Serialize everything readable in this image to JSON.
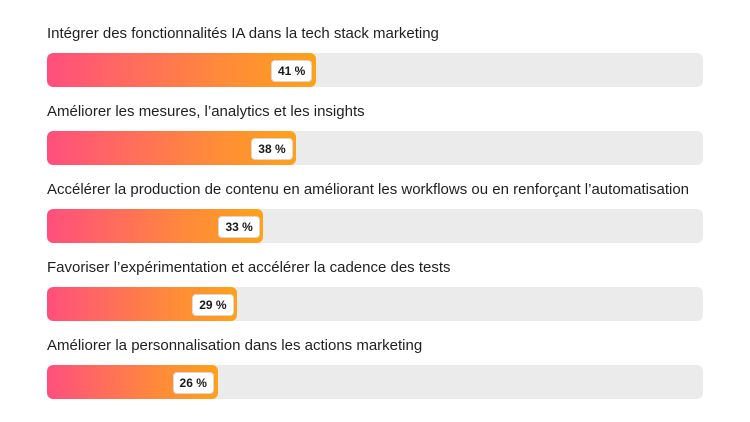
{
  "chart_data": {
    "type": "bar",
    "orientation": "horizontal",
    "categories": [
      "Intégrer des fonctionnalités IA dans la tech stack marketing",
      "Améliorer les mesures, l’analytics et les insights",
      "Accélérer la production de contenu en améliorant les workflows ou en renforçant l’automatisation",
      "Favoriser l’expérimentation et accélérer la cadence des tests",
      "Améliorer la personnalisation dans les actions marketing"
    ],
    "values": [
      41,
      38,
      33,
      29,
      26
    ],
    "value_labels": [
      "41 %",
      "38 %",
      "33 %",
      "29 %",
      "26 %"
    ],
    "xlim": [
      0,
      100
    ],
    "grid": false,
    "legend": false
  },
  "colors": {
    "gradient_start": "#ff4f7e",
    "gradient_end": "#ffa21a",
    "track": "#ebebeb"
  }
}
